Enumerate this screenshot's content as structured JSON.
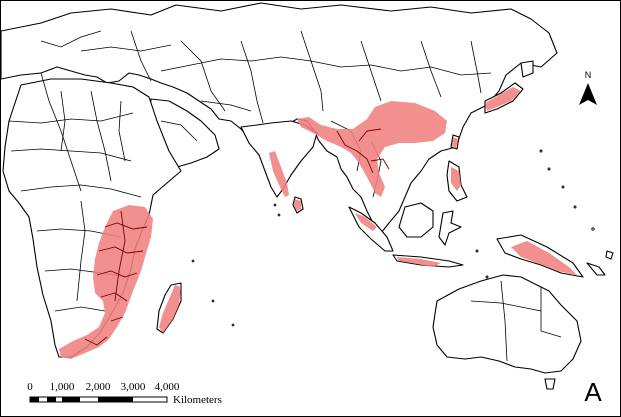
{
  "panel_label": "A",
  "north_arrow": {
    "label": "N",
    "icon": "north-arrow-icon"
  },
  "scale_bar": {
    "ticks": [
      "0",
      "1,000",
      "2,000",
      "3,000",
      "4,000"
    ],
    "unit": "Kilometers"
  },
  "colors": {
    "distribution": "#f08080",
    "land": "#ffffff",
    "outline": "#000000"
  }
}
